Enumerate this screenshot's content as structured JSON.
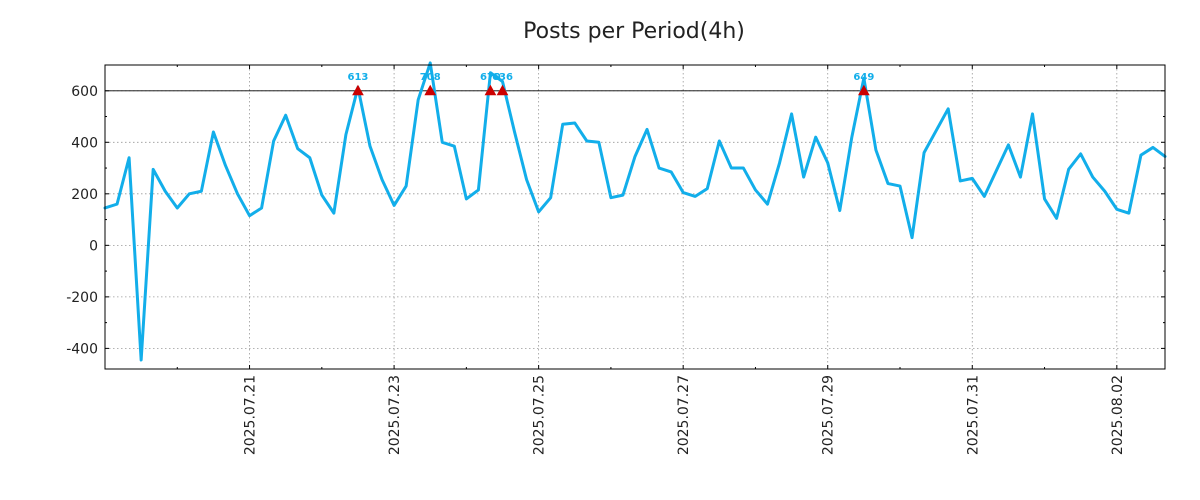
{
  "chart_data": {
    "type": "line",
    "title": "Posts per Period(4h)",
    "xlabel": "",
    "ylabel": "",
    "x_start": "2025.07.19 08:00",
    "interval_hours": 4,
    "xlim_index": [
      0,
      88
    ],
    "ylim": [
      -480,
      700
    ],
    "y_ticks": [
      -400,
      -200,
      0,
      200,
      400,
      600
    ],
    "y_tick_labels": [
      "-400",
      "-200",
      "0",
      "200",
      "400",
      "600"
    ],
    "x_ticks": [
      {
        "index": 12,
        "label": "2025.07.21"
      },
      {
        "index": 24,
        "label": "2025.07.23"
      },
      {
        "index": 36,
        "label": "2025.07.25"
      },
      {
        "index": 48,
        "label": "2025.07.27"
      },
      {
        "index": 60,
        "label": "2025.07.29"
      },
      {
        "index": 72,
        "label": "2025.07.31"
      },
      {
        "index": 84,
        "label": "2025.08.02"
      }
    ],
    "threshold": 600,
    "grid": true,
    "series": [
      {
        "name": "Posts",
        "color": "#12aeea",
        "values": [
          145,
          160,
          340,
          -445,
          295,
          210,
          145,
          200,
          210,
          440,
          310,
          200,
          115,
          145,
          405,
          505,
          375,
          340,
          195,
          125,
          430,
          613,
          385,
          255,
          155,
          230,
          565,
          708,
          400,
          385,
          180,
          215,
          670,
          636,
          440,
          255,
          130,
          185,
          470,
          475,
          405,
          400,
          185,
          195,
          345,
          450,
          300,
          285,
          205,
          190,
          220,
          405,
          300,
          300,
          215,
          160,
          320,
          510,
          265,
          420,
          320,
          135,
          420,
          649,
          370,
          240,
          230,
          30,
          360,
          445,
          530,
          250,
          260,
          190,
          290,
          390,
          265,
          510,
          180,
          105,
          295,
          355,
          265,
          210,
          140,
          125,
          350,
          380,
          345
        ]
      }
    ],
    "peaks": [
      {
        "index": 21,
        "value": 613,
        "label": "613"
      },
      {
        "index": 27,
        "value": 708,
        "label": "708"
      },
      {
        "index": 32,
        "value": 670,
        "label": "670"
      },
      {
        "index": 33,
        "value": 636,
        "label": "636"
      },
      {
        "index": 63,
        "value": 649,
        "label": "649"
      }
    ],
    "peak_marker_color": "#cc0000",
    "peak_label_color": "#12aeea"
  }
}
